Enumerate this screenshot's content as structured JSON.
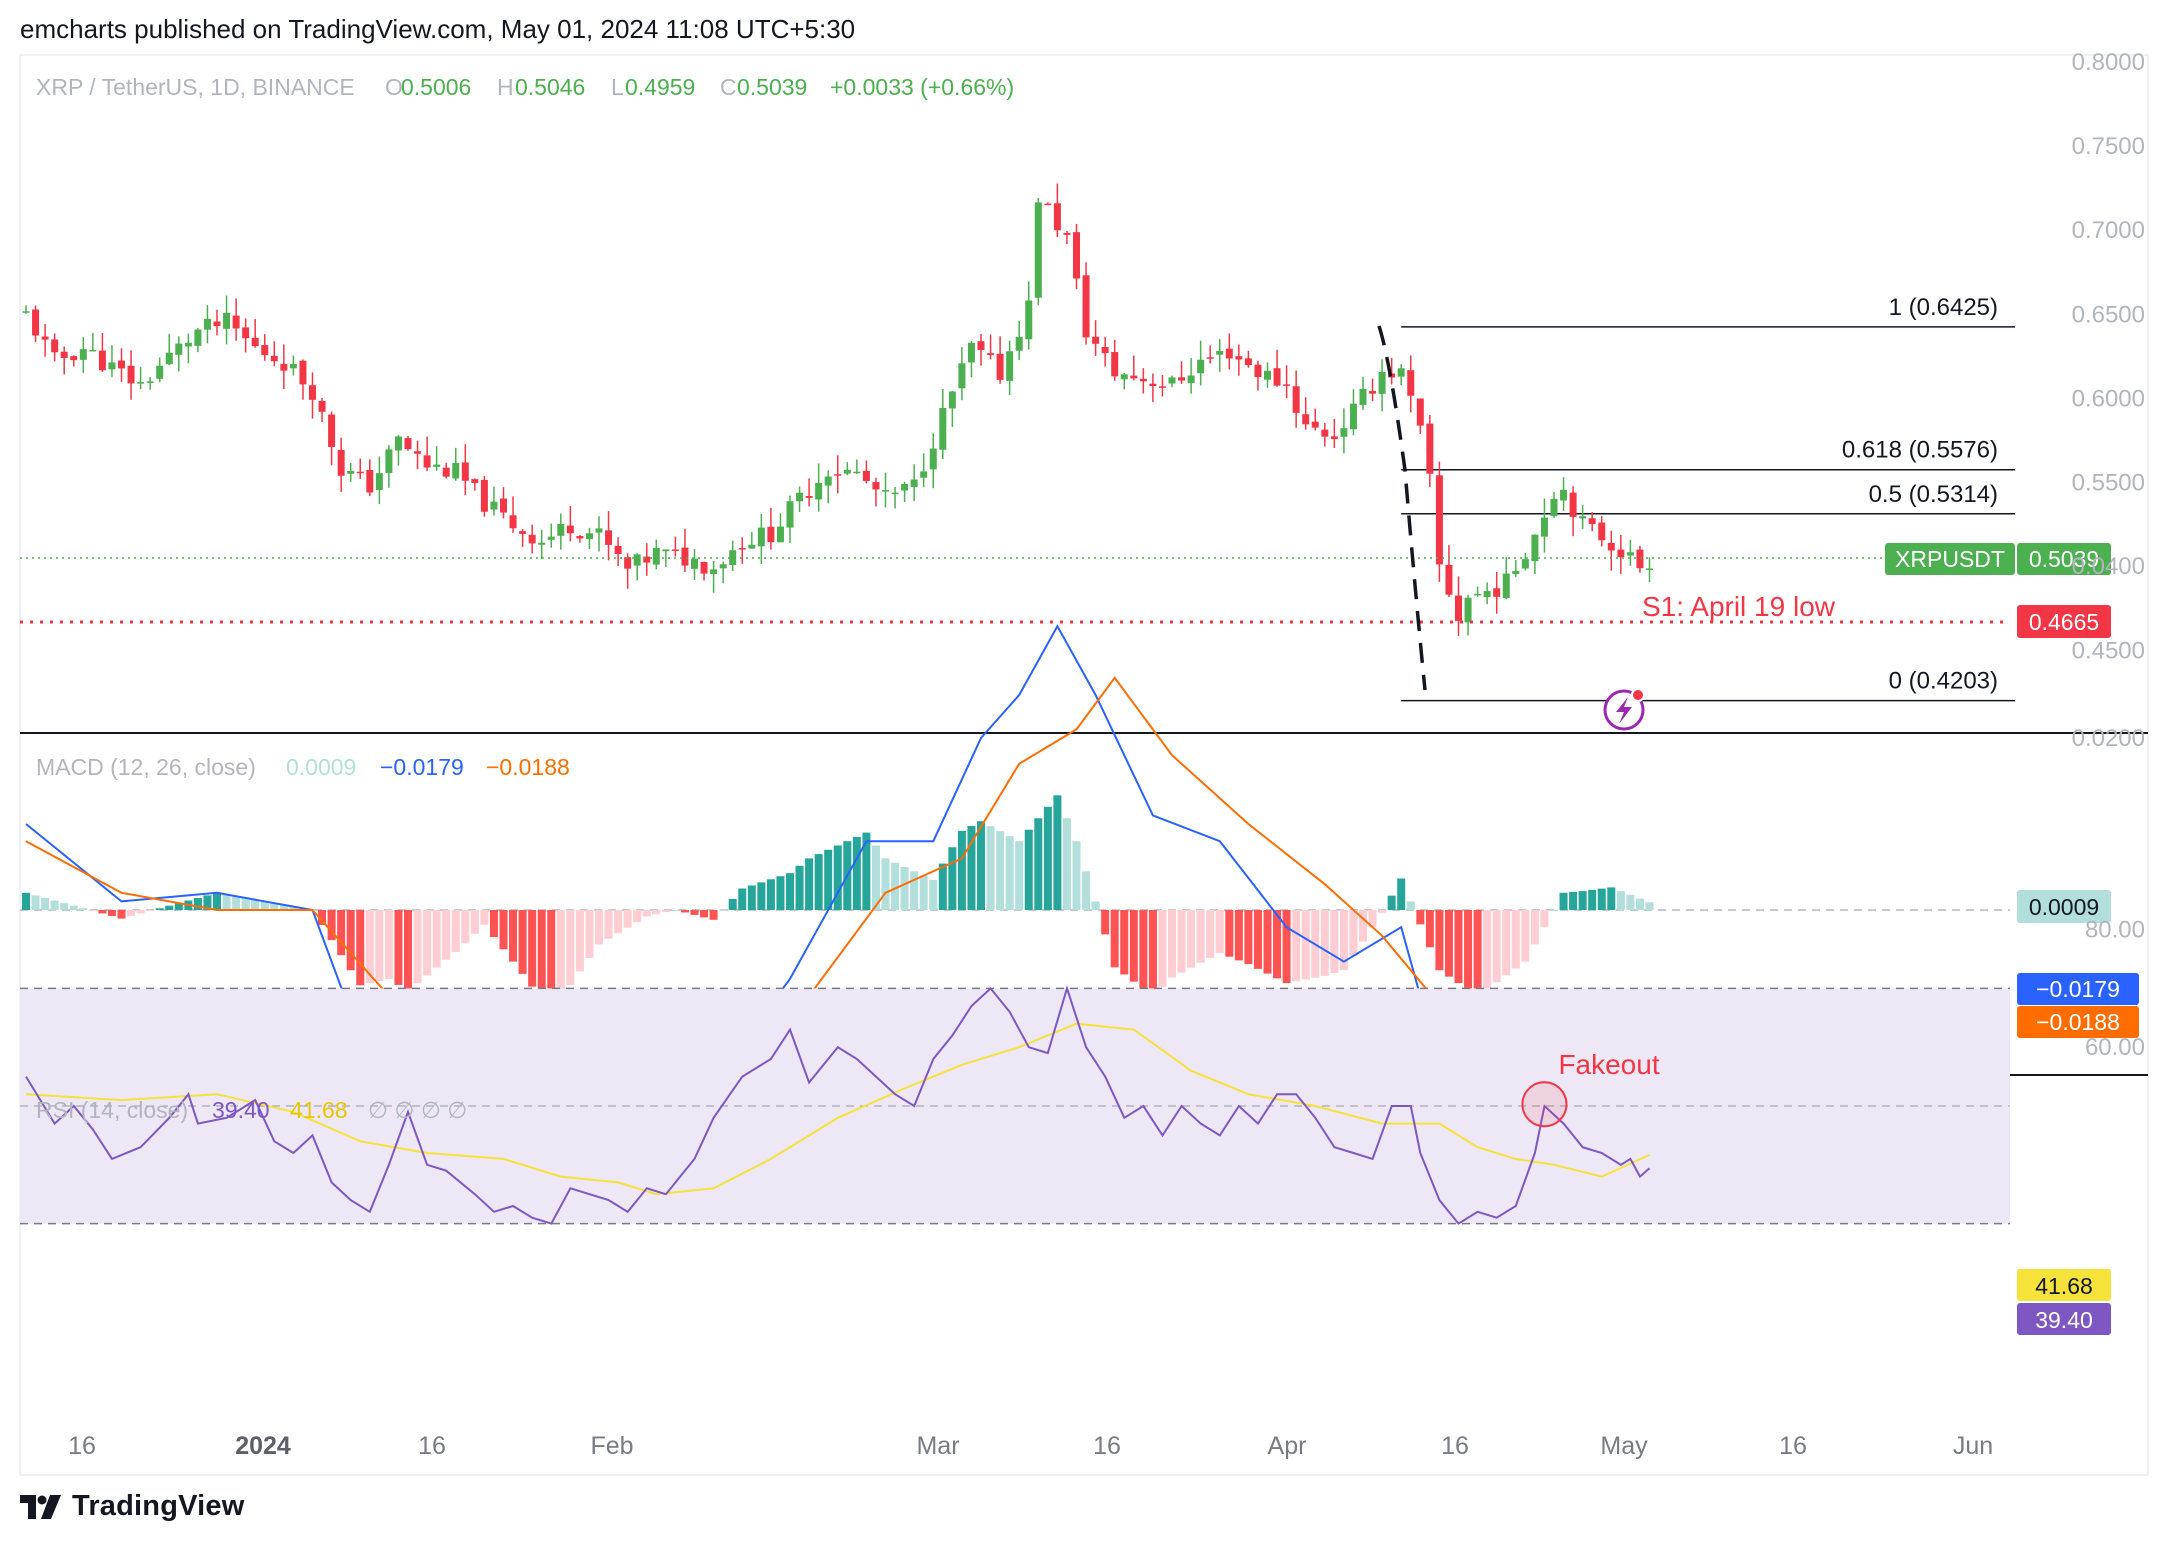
{
  "header": {
    "text": "emcharts published on TradingView.com, May 01, 2024 11:08 UTC+5:30"
  },
  "footer": {
    "brand": "TradingView"
  },
  "colors": {
    "up": "#4caf50",
    "down": "#f23645",
    "macd_line": "#2962ff",
    "signal_line": "#ff6d00",
    "hist_up_strong": "#26a69a",
    "hist_up_weak": "#b2dfdb",
    "hist_down_strong": "#ff5252",
    "hist_down_weak": "#ffcdd2",
    "rsi_line": "#7e57c2",
    "rsi_ma": "#f5e33b",
    "rsi_band": "#ede7f6",
    "support": "#f23645",
    "axis_text": "#b2b5be"
  },
  "chart_data": [
    {
      "type": "candlestick",
      "symbol": "XRP / TetherUS, 1D, BINANCE",
      "ohlc_label": {
        "o": "0.5006",
        "h": "0.5046",
        "l": "0.4959",
        "c": "0.5039",
        "change": "+0.0033 (+0.66%)"
      },
      "y_axis": {
        "min": 0.4,
        "max": 0.8,
        "ticks": [
          "0.8000",
          "0.7500",
          "0.7000",
          "0.6500",
          "0.6000",
          "0.5500",
          "0.4500"
        ]
      },
      "last_price": {
        "label": "XRPUSDT",
        "value": "0.5039"
      },
      "support": {
        "label": "S1: April 19 low",
        "value": 0.4665,
        "value_label": "0.4665"
      },
      "fibonacci": [
        {
          "ratio_label": "1 (0.6425)",
          "value": 0.6425
        },
        {
          "ratio_label": "0.618 (0.5576)",
          "value": 0.5576
        },
        {
          "ratio_label": "0.5 (0.5314)",
          "value": 0.5314
        },
        {
          "ratio_label": "0 (0.4203)",
          "value": 0.4203
        }
      ],
      "price_path": [
        [
          0,
          0.65
        ],
        [
          3,
          0.622
        ],
        [
          6,
          0.63
        ],
        [
          9,
          0.618
        ],
        [
          12,
          0.608
        ],
        [
          15,
          0.625
        ],
        [
          18,
          0.64
        ],
        [
          21,
          0.645
        ],
        [
          24,
          0.63
        ],
        [
          27,
          0.622
        ],
        [
          30,
          0.605
        ],
        [
          33,
          0.558
        ],
        [
          36,
          0.548
        ],
        [
          39,
          0.575
        ],
        [
          42,
          0.56
        ],
        [
          45,
          0.556
        ],
        [
          48,
          0.538
        ],
        [
          51,
          0.525
        ],
        [
          54,
          0.515
        ],
        [
          57,
          0.525
        ],
        [
          60,
          0.518
        ],
        [
          63,
          0.498
        ],
        [
          66,
          0.508
        ],
        [
          69,
          0.505
        ],
        [
          72,
          0.5
        ],
        [
          75,
          0.515
        ],
        [
          78,
          0.52
        ],
        [
          81,
          0.54
        ],
        [
          84,
          0.558
        ],
        [
          87,
          0.555
        ],
        [
          90,
          0.54
        ],
        [
          93,
          0.548
        ],
        [
          96,
          0.59
        ],
        [
          99,
          0.63
        ],
        [
          102,
          0.615
        ],
        [
          105,
          0.655
        ],
        [
          106,
          0.72
        ],
        [
          109,
          0.695
        ],
        [
          111,
          0.64
        ],
        [
          114,
          0.615
        ],
        [
          117,
          0.612
        ],
        [
          120,
          0.608
        ],
        [
          123,
          0.622
        ],
        [
          126,
          0.628
        ],
        [
          129,
          0.616
        ],
        [
          132,
          0.608
        ],
        [
          134,
          0.583
        ],
        [
          137,
          0.578
        ],
        [
          140,
          0.6
        ],
        [
          142,
          0.616
        ],
        [
          144,
          0.615
        ],
        [
          146,
          0.58
        ],
        [
          147,
          0.55
        ],
        [
          148,
          0.5
        ],
        [
          150,
          0.47
        ],
        [
          151,
          0.482
        ],
        [
          153,
          0.485
        ],
        [
          155,
          0.49
        ],
        [
          158,
          0.52
        ],
        [
          160,
          0.545
        ],
        [
          161,
          0.546
        ],
        [
          163,
          0.525
        ],
        [
          165,
          0.518
        ],
        [
          167,
          0.51
        ],
        [
          169,
          0.5
        ],
        [
          170,
          0.5039
        ]
      ]
    },
    {
      "type": "line",
      "title": "MACD (12, 26, close)",
      "values_label": {
        "hist": "0.0009",
        "macd": "−0.0179",
        "signal": "−0.0188"
      },
      "y_axis": {
        "ticks": [
          "0.0400",
          "0.0200"
        ]
      },
      "zero_label": "0.0009",
      "macd_path": [
        [
          0,
          0.01
        ],
        [
          10,
          0.001
        ],
        [
          20,
          0.002
        ],
        [
          30,
          0.0
        ],
        [
          35,
          -0.015
        ],
        [
          40,
          -0.02
        ],
        [
          48,
          -0.015
        ],
        [
          55,
          -0.028
        ],
        [
          60,
          -0.022
        ],
        [
          65,
          -0.02
        ],
        [
          72,
          -0.02
        ],
        [
          80,
          -0.008
        ],
        [
          88,
          0.008
        ],
        [
          95,
          0.008
        ],
        [
          100,
          0.02
        ],
        [
          104,
          0.025
        ],
        [
          108,
          0.033
        ],
        [
          112,
          0.025
        ],
        [
          118,
          0.011
        ],
        [
          125,
          0.008
        ],
        [
          132,
          -0.002
        ],
        [
          138,
          -0.006
        ],
        [
          144,
          -0.002
        ],
        [
          148,
          -0.018
        ],
        [
          152,
          -0.03
        ],
        [
          157,
          -0.031
        ],
        [
          161,
          -0.021
        ],
        [
          166,
          -0.018
        ],
        [
          170,
          -0.0179
        ]
      ],
      "signal_path": [
        [
          0,
          0.008
        ],
        [
          10,
          0.002
        ],
        [
          20,
          0.0
        ],
        [
          30,
          0.0
        ],
        [
          38,
          -0.01
        ],
        [
          45,
          -0.012
        ],
        [
          52,
          -0.015
        ],
        [
          60,
          -0.018
        ],
        [
          68,
          -0.02
        ],
        [
          75,
          -0.018
        ],
        [
          82,
          -0.01
        ],
        [
          90,
          0.002
        ],
        [
          98,
          0.006
        ],
        [
          104,
          0.017
        ],
        [
          110,
          0.021
        ],
        [
          114,
          0.027
        ],
        [
          120,
          0.018
        ],
        [
          128,
          0.01
        ],
        [
          136,
          0.003
        ],
        [
          142,
          -0.003
        ],
        [
          148,
          -0.011
        ],
        [
          152,
          -0.02
        ],
        [
          157,
          -0.025
        ],
        [
          163,
          -0.022
        ],
        [
          170,
          -0.0188
        ]
      ]
    },
    {
      "type": "line",
      "title": "RSI (14, close)",
      "values_label": {
        "rsi": "39.40",
        "ma": "41.68",
        "extras": "∅ ∅ ∅ ∅"
      },
      "y_axis": {
        "min": 20,
        "max": 80,
        "ticks": [
          "80.00",
          "60.00"
        ]
      },
      "bands": {
        "upper": 70,
        "lower": 30
      },
      "annotation": {
        "text": "Fakeout",
        "x": 159,
        "y": 50.3
      },
      "labels": {
        "ma": "41.68",
        "rsi": "39.40"
      },
      "rsi_path": [
        [
          0,
          55
        ],
        [
          3,
          47
        ],
        [
          5,
          50
        ],
        [
          7,
          46
        ],
        [
          9,
          41
        ],
        [
          12,
          43
        ],
        [
          15,
          48
        ],
        [
          17,
          52
        ],
        [
          18,
          47
        ],
        [
          21,
          48
        ],
        [
          24,
          51
        ],
        [
          26,
          44
        ],
        [
          28,
          42
        ],
        [
          30,
          45
        ],
        [
          32,
          37
        ],
        [
          34,
          34
        ],
        [
          36,
          32
        ],
        [
          38,
          40
        ],
        [
          40,
          49
        ],
        [
          42,
          40
        ],
        [
          44,
          39
        ],
        [
          47,
          35
        ],
        [
          49,
          32
        ],
        [
          51,
          33
        ],
        [
          53,
          31
        ],
        [
          55,
          30
        ],
        [
          57,
          36
        ],
        [
          59,
          35
        ],
        [
          61,
          34
        ],
        [
          63,
          32
        ],
        [
          65,
          36
        ],
        [
          67,
          35
        ],
        [
          70,
          41
        ],
        [
          72,
          48
        ],
        [
          75,
          55
        ],
        [
          78,
          58
        ],
        [
          80,
          63
        ],
        [
          82,
          54
        ],
        [
          85,
          60
        ],
        [
          87,
          58
        ],
        [
          89,
          55
        ],
        [
          91,
          52
        ],
        [
          93,
          50
        ],
        [
          95,
          58
        ],
        [
          97,
          62
        ],
        [
          99,
          67
        ],
        [
          101,
          70
        ],
        [
          103,
          66
        ],
        [
          105,
          60
        ],
        [
          107,
          59
        ],
        [
          109,
          70
        ],
        [
          111,
          60
        ],
        [
          113,
          55
        ],
        [
          115,
          48
        ],
        [
          117,
          50
        ],
        [
          119,
          45
        ],
        [
          121,
          50
        ],
        [
          123,
          47
        ],
        [
          125,
          45
        ],
        [
          127,
          50
        ],
        [
          129,
          47
        ],
        [
          131,
          52
        ],
        [
          133,
          52
        ],
        [
          135,
          48
        ],
        [
          137,
          43
        ],
        [
          139,
          42
        ],
        [
          141,
          41
        ],
        [
          143,
          50
        ],
        [
          145,
          50
        ],
        [
          146,
          42
        ],
        [
          148,
          34
        ],
        [
          150,
          30
        ],
        [
          152,
          32
        ],
        [
          154,
          31
        ],
        [
          156,
          33
        ],
        [
          158,
          42
        ],
        [
          159,
          50
        ],
        [
          161,
          47
        ],
        [
          163,
          43
        ],
        [
          165,
          42
        ],
        [
          167,
          40
        ],
        [
          168,
          41
        ],
        [
          169,
          38
        ],
        [
          170,
          39.4
        ]
      ],
      "ma_path": [
        [
          0,
          52
        ],
        [
          10,
          51
        ],
        [
          20,
          52
        ],
        [
          28,
          49
        ],
        [
          35,
          44
        ],
        [
          42,
          42
        ],
        [
          50,
          41
        ],
        [
          56,
          38
        ],
        [
          62,
          37
        ],
        [
          66,
          35
        ],
        [
          72,
          36
        ],
        [
          78,
          41
        ],
        [
          85,
          48
        ],
        [
          92,
          53
        ],
        [
          98,
          57
        ],
        [
          104,
          60
        ],
        [
          110,
          64
        ],
        [
          116,
          63
        ],
        [
          122,
          56
        ],
        [
          128,
          52
        ],
        [
          135,
          50
        ],
        [
          142,
          47
        ],
        [
          148,
          47
        ],
        [
          152,
          43
        ],
        [
          156,
          41
        ],
        [
          160,
          40
        ],
        [
          165,
          38
        ],
        [
          170,
          41.68
        ]
      ]
    }
  ],
  "x_axis": {
    "labels": [
      {
        "text": "16",
        "day": -8
      },
      {
        "text": "2024",
        "day": 10,
        "bold": true
      },
      {
        "text": "16",
        "day": 25
      },
      {
        "text": "Feb",
        "day": 41
      },
      {
        "text": "Mar",
        "day": 70
      },
      {
        "text": "16",
        "day": 85
      },
      {
        "text": "Apr",
        "day": 101
      },
      {
        "text": "16",
        "day": 116
      },
      {
        "text": "May",
        "day": 131
      },
      {
        "text": "16",
        "day": 146
      },
      {
        "text": "Jun",
        "day": 162
      }
    ]
  }
}
